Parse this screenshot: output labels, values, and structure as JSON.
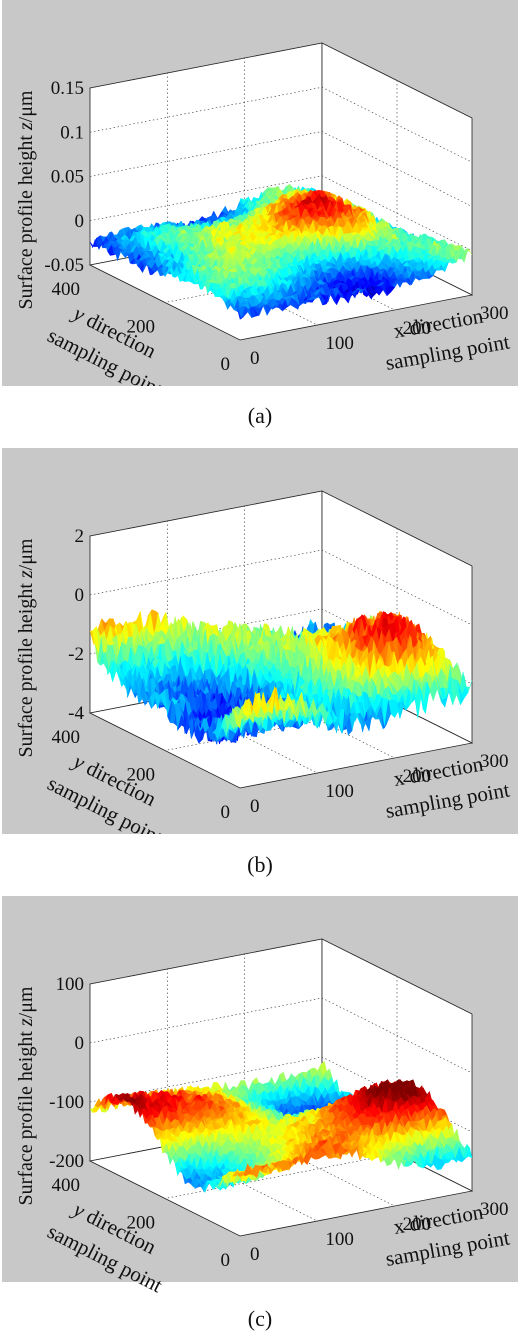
{
  "chart_data": [
    {
      "type": "surface",
      "caption": "(a)",
      "zlabel_prefix": "Surface profile height ",
      "zlabel_var": "z",
      "zlabel_suffix": "/μm",
      "ylabel_line1_var": "y",
      "ylabel_line1_rest": " direction",
      "ylabel_line2": "sampling point",
      "xlabel_line1": "x direction",
      "xlabel_line2": "sampling point",
      "xticks": [
        "0",
        "100",
        "200",
        "300"
      ],
      "yticks": [
        "0",
        "200",
        "400"
      ],
      "zticks": [
        "-0.05",
        "0",
        "0.05",
        "0.1",
        "0.15"
      ],
      "xlim": [
        0,
        300
      ],
      "ylim": [
        0,
        400
      ],
      "zlim": [
        -0.05,
        0.15
      ],
      "colormap": "jet",
      "grid": true
    },
    {
      "type": "surface",
      "caption": "(b)",
      "zlabel_prefix": "Surface profile height ",
      "zlabel_var": "z",
      "zlabel_suffix": "/μm",
      "ylabel_line1_var": "y",
      "ylabel_line1_rest": " direction",
      "ylabel_line2": "sampling point",
      "xlabel_line1": "x direction",
      "xlabel_line2": "sampling point",
      "xticks": [
        "0",
        "100",
        "200",
        "300"
      ],
      "yticks": [
        "0",
        "200",
        "400"
      ],
      "zticks": [
        "-4",
        "-2",
        "0",
        "2"
      ],
      "xlim": [
        0,
        300
      ],
      "ylim": [
        0,
        400
      ],
      "zlim": [
        -4,
        2
      ],
      "colormap": "jet",
      "grid": true
    },
    {
      "type": "surface",
      "caption": "(c)",
      "zlabel_prefix": "Surface profile height ",
      "zlabel_var": "z",
      "zlabel_suffix": "/μm",
      "ylabel_line1_var": "y",
      "ylabel_line1_rest": " direction",
      "ylabel_line2": "sampling point",
      "xlabel_line1": "x direction",
      "xlabel_line2": "sampling point",
      "xticks": [
        "0",
        "100",
        "200",
        "300"
      ],
      "yticks": [
        "0",
        "200",
        "400"
      ],
      "zticks": [
        "-200",
        "-100",
        "0",
        "100"
      ],
      "xlim": [
        0,
        300
      ],
      "ylim": [
        0,
        400
      ],
      "zlim": [
        -200,
        100
      ],
      "colormap": "jet",
      "grid": true
    }
  ]
}
